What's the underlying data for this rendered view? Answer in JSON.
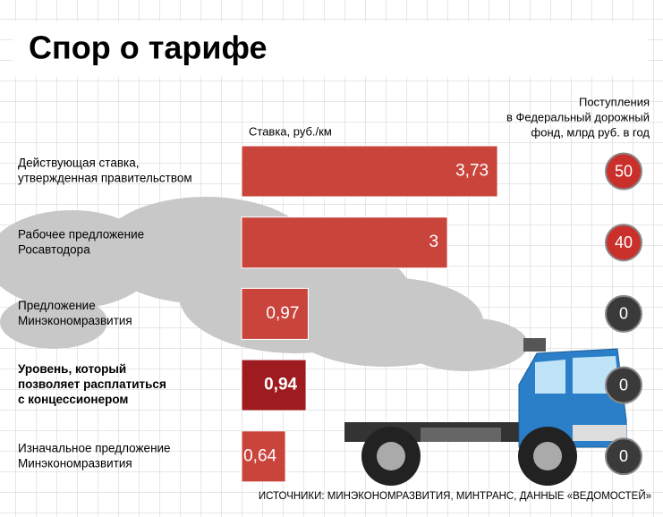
{
  "chart_data": {
    "type": "bar",
    "title": "Спор о тарифе",
    "axis_label": "Ставка, руб./км",
    "revenue_label": [
      "Поступления",
      "в Федеральный дорожный",
      "фонд, млрд руб. в год"
    ],
    "categories": [
      [
        "Действующая ставка,",
        "утвержденная правительством"
      ],
      [
        "Рабочее предложение",
        "Росавтодора"
      ],
      [
        "Предложение",
        "Минэкономразвития"
      ],
      [
        "Уровень, который",
        "позволяет расплатиться",
        "с концессионером"
      ],
      [
        "Изначальное предложение",
        "Минэкономразвития"
      ]
    ],
    "series": [
      {
        "name": "Ставка, руб./км",
        "color": "#c9443b",
        "values": [
          3.73,
          3,
          0.97,
          0.94,
          0.64
        ],
        "value_labels": [
          "3,73",
          "3",
          "0,97",
          "0,94",
          "0,64"
        ]
      },
      {
        "name": "Поступления",
        "values": [
          50,
          40,
          0,
          0,
          0
        ]
      }
    ],
    "highlight": 3,
    "highlight_color": "#9e1c1f",
    "source": "ИСТОЧНИКИ: МИНЭКОНОМРАЗВИТИЯ, МИНТРАНС, ДАННЫЕ «ВЕДОМОСТЕЙ»"
  }
}
